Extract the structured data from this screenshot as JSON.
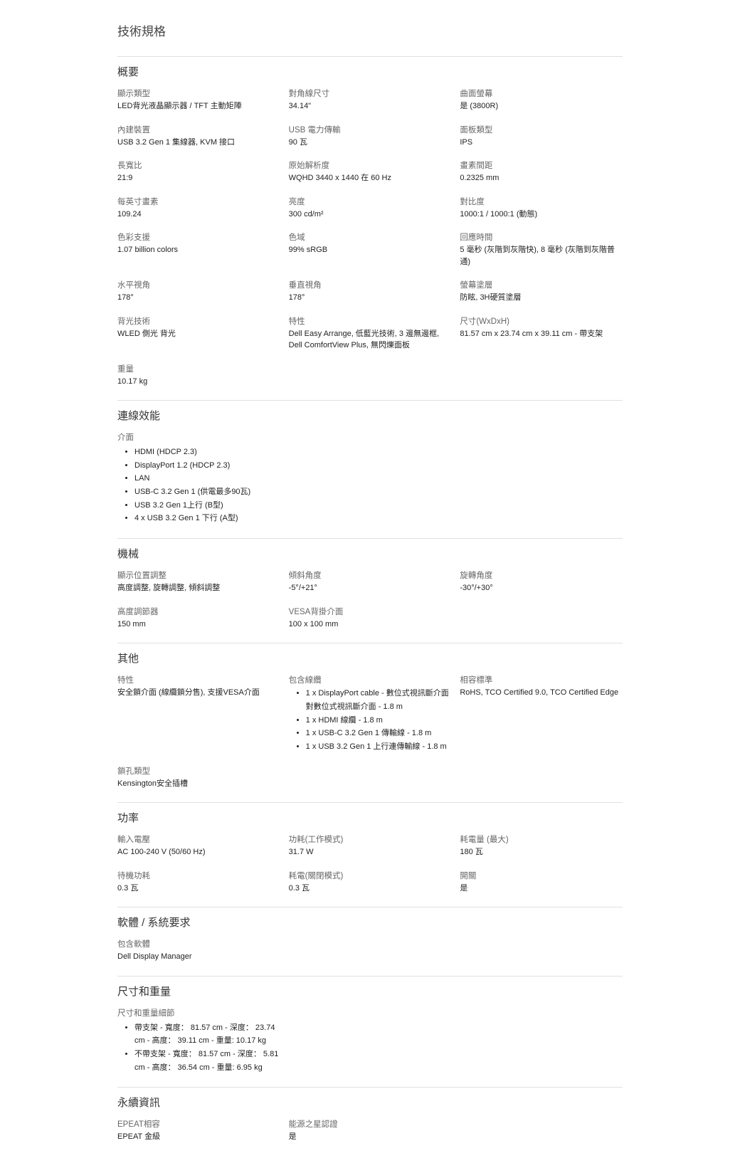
{
  "page_title": "技術規格",
  "sections": {
    "overview": {
      "title": "概要",
      "items": [
        {
          "label": "顯示類型",
          "value": "LED背光液晶顯示器 / TFT 主動矩陣"
        },
        {
          "label": "對角線尺寸",
          "value": "34.14\""
        },
        {
          "label": "曲面螢幕",
          "value": "是 (3800R)"
        },
        {
          "label": "內建裝置",
          "value": "USB 3.2 Gen 1 集線器, KVM 接口"
        },
        {
          "label": "USB 電力傳輸",
          "value": "90 瓦"
        },
        {
          "label": "面板類型",
          "value": "IPS"
        },
        {
          "label": "長寬比",
          "value": "21:9"
        },
        {
          "label": "原始解析度",
          "value": "WQHD 3440 x 1440 在 60 Hz"
        },
        {
          "label": "畫素間距",
          "value": "0.2325 mm"
        },
        {
          "label": "每英寸畫素",
          "value": "109.24"
        },
        {
          "label": "亮度",
          "value": "300 cd/m²"
        },
        {
          "label": "對比度",
          "value": "1000:1 / 1000:1 (動態)"
        },
        {
          "label": "色彩支援",
          "value": "1.07 billion colors"
        },
        {
          "label": "色域",
          "value": "99% sRGB"
        },
        {
          "label": "回應時間",
          "value": "5 毫秒 (灰階到灰階快), 8 毫秒 (灰階到灰階普通)"
        },
        {
          "label": "水平視角",
          "value": "178°"
        },
        {
          "label": "垂直視角",
          "value": "178°"
        },
        {
          "label": "螢幕塗層",
          "value": "防眩, 3H硬質塗層"
        },
        {
          "label": "背光技術",
          "value": "WLED 側光 背光"
        },
        {
          "label": "特性",
          "value": "Dell Easy Arrange, 低藍光技術, 3 邊無邊框, Dell ComfortView Plus, 無閃爍面板"
        },
        {
          "label": "尺寸(WxDxH)",
          "value": "81.57 cm x 23.74 cm x 39.11 cm - 帶支架"
        },
        {
          "label": "重量",
          "value": "10.17 kg"
        }
      ]
    },
    "connectivity": {
      "title": "連線效能",
      "sub_label": "介面",
      "bullets": [
        "HDMI (HDCP 2.3)",
        "DisplayPort 1.2 (HDCP 2.3)",
        "LAN",
        "USB-C 3.2 Gen 1 (供電最多90瓦)",
        "USB 3.2 Gen 1上行 (B型)",
        "4 x USB 3.2 Gen 1 下行 (A型)"
      ]
    },
    "mechanical": {
      "title": "機械",
      "items": [
        {
          "label": "顯示位置調整",
          "value": "高度調整, 旋轉調整, 傾斜調整"
        },
        {
          "label": "傾斜角度",
          "value": "-5°/+21°"
        },
        {
          "label": "旋轉角度",
          "value": "-30°/+30°"
        },
        {
          "label": "高度調節器",
          "value": "150 mm"
        },
        {
          "label": "VESA背掛介面",
          "value": "100 x 100 mm"
        }
      ]
    },
    "misc": {
      "title": "其他",
      "features": {
        "label": "特性",
        "value": "安全鎖介面 (線纜鎖分售), 支援VESA介面"
      },
      "cables": {
        "label": "包含線纜",
        "bullets": [
          "1 x DisplayPort cable - 數位式視訊斷介面對數位式視訊斷介面 - 1.8 m",
          "1 x HDMI 線纜 - 1.8 m",
          "1 x USB-C 3.2 Gen 1 傳輸線 - 1.8 m",
          "1 x USB 3.2 Gen 1 上行連傳輸線 - 1.8 m"
        ]
      },
      "compliance": {
        "label": "相容標準",
        "value": "RoHS, TCO Certified 9.0, TCO Certified Edge"
      },
      "lock": {
        "label": "鎖孔類型",
        "value": "Kensington安全插槽"
      }
    },
    "power": {
      "title": "功率",
      "items": [
        {
          "label": "輸入電壓",
          "value": "AC 100-240 V (50/60 Hz)"
        },
        {
          "label": "功耗(工作模式)",
          "value": "31.7 W"
        },
        {
          "label": "耗電量 (最大)",
          "value": "180 瓦"
        },
        {
          "label": "待機功耗",
          "value": "0.3 瓦"
        },
        {
          "label": "耗電(關閉模式)",
          "value": "0.3 瓦"
        },
        {
          "label": "開關",
          "value": "是"
        }
      ]
    },
    "software": {
      "title": "軟體 / 系統要求",
      "items": [
        {
          "label": "包含軟體",
          "value": "Dell Display Manager"
        }
      ]
    },
    "dimensions": {
      "title": "尺寸和重量",
      "sub_label": "尺寸和重量細節",
      "bullets": [
        "帶支架 - 寬度： 81.57 cm - 深度： 23.74 cm - 高度： 39.11 cm - 重量: 10.17 kg",
        "不帶支架 - 寬度： 81.57 cm - 深度： 5.81 cm - 高度： 36.54 cm - 重量: 6.95 kg"
      ]
    },
    "sustainability": {
      "title": "永續資訊",
      "items": [
        {
          "label": "EPEAT相容",
          "value": "EPEAT 金級"
        },
        {
          "label": "能源之星認證",
          "value": "是"
        }
      ]
    }
  }
}
